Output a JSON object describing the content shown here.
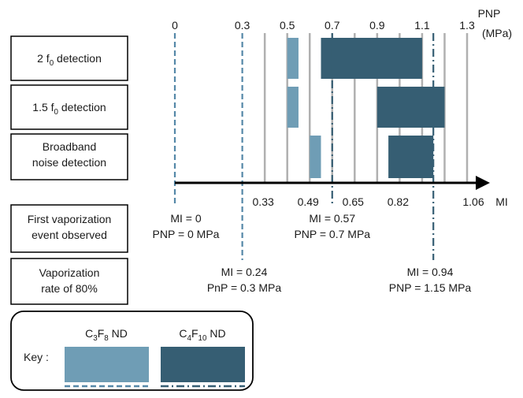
{
  "colors": {
    "c3f8": "#6f9db5",
    "c4f10": "#365e73",
    "grid": "#b0b0b0",
    "axis": "#000000",
    "ref_line": "#5588a8"
  },
  "chart_data": {
    "type": "bar",
    "orientation": "horizontal-range",
    "pnp_axis": {
      "title_line1": "PNP",
      "title_line2": "(MPa)",
      "ticks": [
        0,
        0.3,
        0.5,
        0.7,
        0.9,
        1.1,
        1.3
      ],
      "tick_labels": [
        "0",
        "0.3",
        "0.5",
        "0.7",
        "0.9",
        "1.1",
        "1.3"
      ]
    },
    "mi_axis": {
      "title": "MI",
      "ticks": [
        0.33,
        0.49,
        0.65,
        0.82,
        1.06
      ],
      "tick_labels": [
        "0.33",
        "0.49",
        "0.65",
        "0.82",
        "1.06"
      ]
    },
    "gridlines_pnp": [
      0.4,
      0.5,
      0.6,
      0.7,
      0.8,
      0.9,
      1.0,
      1.1,
      1.2,
      1.3
    ],
    "rows": [
      {
        "label_parts": [
          {
            "t": "2 f"
          },
          {
            "t": "0",
            "sub": true
          },
          {
            "t": " detection"
          }
        ],
        "ranges": [
          {
            "agent": "c3f8",
            "from": 0.5,
            "to": 0.55
          },
          {
            "agent": "c4f10",
            "from": 0.65,
            "to": 1.1
          }
        ]
      },
      {
        "label_parts": [
          {
            "t": "1.5 f"
          },
          {
            "t": "0",
            "sub": true
          },
          {
            "t": " detection"
          }
        ],
        "ranges": [
          {
            "agent": "c3f8",
            "from": 0.5,
            "to": 0.55
          },
          {
            "agent": "c4f10",
            "from": 0.9,
            "to": 1.2
          }
        ]
      },
      {
        "label_lines": [
          "Broadband",
          "noise detection"
        ],
        "ranges": [
          {
            "agent": "c3f8",
            "from": 0.6,
            "to": 0.65
          },
          {
            "agent": "c4f10",
            "from": 0.95,
            "to": 1.15
          }
        ]
      }
    ],
    "reference_lines": [
      {
        "pnp": 0,
        "style": "dashed",
        "agent": "c3f8",
        "event": "first"
      },
      {
        "pnp": 0.3,
        "style": "dashed",
        "agent": "c3f8",
        "event": "80"
      },
      {
        "pnp": 0.7,
        "style": "dash-dot",
        "agent": "c4f10",
        "event": "first"
      },
      {
        "pnp": 1.15,
        "style": "dash-dot",
        "agent": "c4f10",
        "event": "80"
      }
    ],
    "lower_rows": [
      {
        "label_lines": [
          "First vaporization",
          "event observed"
        ],
        "annotations": [
          {
            "pnp": 0,
            "line1": "MI = 0",
            "line2": "PNP = 0 MPa"
          },
          {
            "pnp": 0.7,
            "line1": "MI = 0.57",
            "line2": "PNP = 0.7 MPa"
          }
        ]
      },
      {
        "label_lines": [
          "Vaporization",
          "rate of 80%"
        ],
        "annotations": [
          {
            "pnp": 0.3,
            "line1": "MI = 0.24",
            "line2": "PnP = 0.3 MPa"
          },
          {
            "pnp": 1.15,
            "line1": "MI = 0.94",
            "line2": "PNP = 1.15 MPa"
          }
        ]
      }
    ],
    "legend": {
      "key_label": "Key :",
      "items": [
        {
          "agent": "c3f8",
          "parts": [
            {
              "t": "C"
            },
            {
              "t": "3",
              "sub": true
            },
            {
              "t": "F"
            },
            {
              "t": "8",
              "sub": true
            },
            {
              "t": " ND"
            }
          ],
          "line_style": "dashed"
        },
        {
          "agent": "c4f10",
          "parts": [
            {
              "t": "C"
            },
            {
              "t": "4",
              "sub": true
            },
            {
              "t": "F"
            },
            {
              "t": "10",
              "sub": true
            },
            {
              "t": " ND"
            }
          ],
          "line_style": "dash-dot"
        }
      ]
    }
  }
}
